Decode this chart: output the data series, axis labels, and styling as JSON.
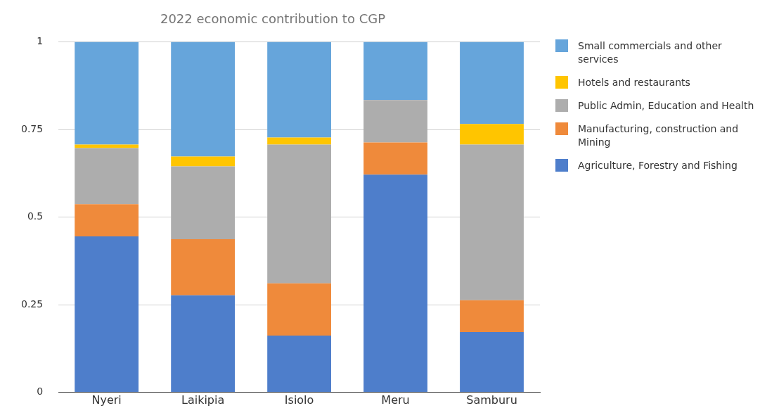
{
  "chart_data": {
    "type": "bar",
    "title": "2022 economic contribution to CGP",
    "stacked": true,
    "categories": [
      "Nyeri",
      "Laikipia",
      "Isiolo",
      "Meru",
      "Samburu"
    ],
    "series": [
      {
        "name": "Agriculture, Forestry and Fishing",
        "color": "#4e7ecb",
        "values": [
          0.445,
          0.277,
          0.162,
          0.621,
          0.172
        ]
      },
      {
        "name": "Manufacturing, construction and Mining",
        "color": "#ef8a3b",
        "values": [
          0.092,
          0.16,
          0.149,
          0.092,
          0.091
        ]
      },
      {
        "name": "Public Admin, Education and Health",
        "color": "#adadad",
        "values": [
          0.16,
          0.208,
          0.396,
          0.121,
          0.444
        ]
      },
      {
        "name": "Hotels and restaurants",
        "color": "#ffc500",
        "values": [
          0.01,
          0.028,
          0.02,
          0,
          0.059
        ]
      },
      {
        "name": "Small commercials and other services",
        "color": "#66a5db",
        "values": [
          0.293,
          0.327,
          0.273,
          0.166,
          0.234
        ]
      }
    ],
    "ylim": [
      0,
      1
    ],
    "yticks": [
      0,
      0.25,
      0.5,
      0.75,
      1
    ],
    "grid": "y",
    "legend": "right"
  }
}
